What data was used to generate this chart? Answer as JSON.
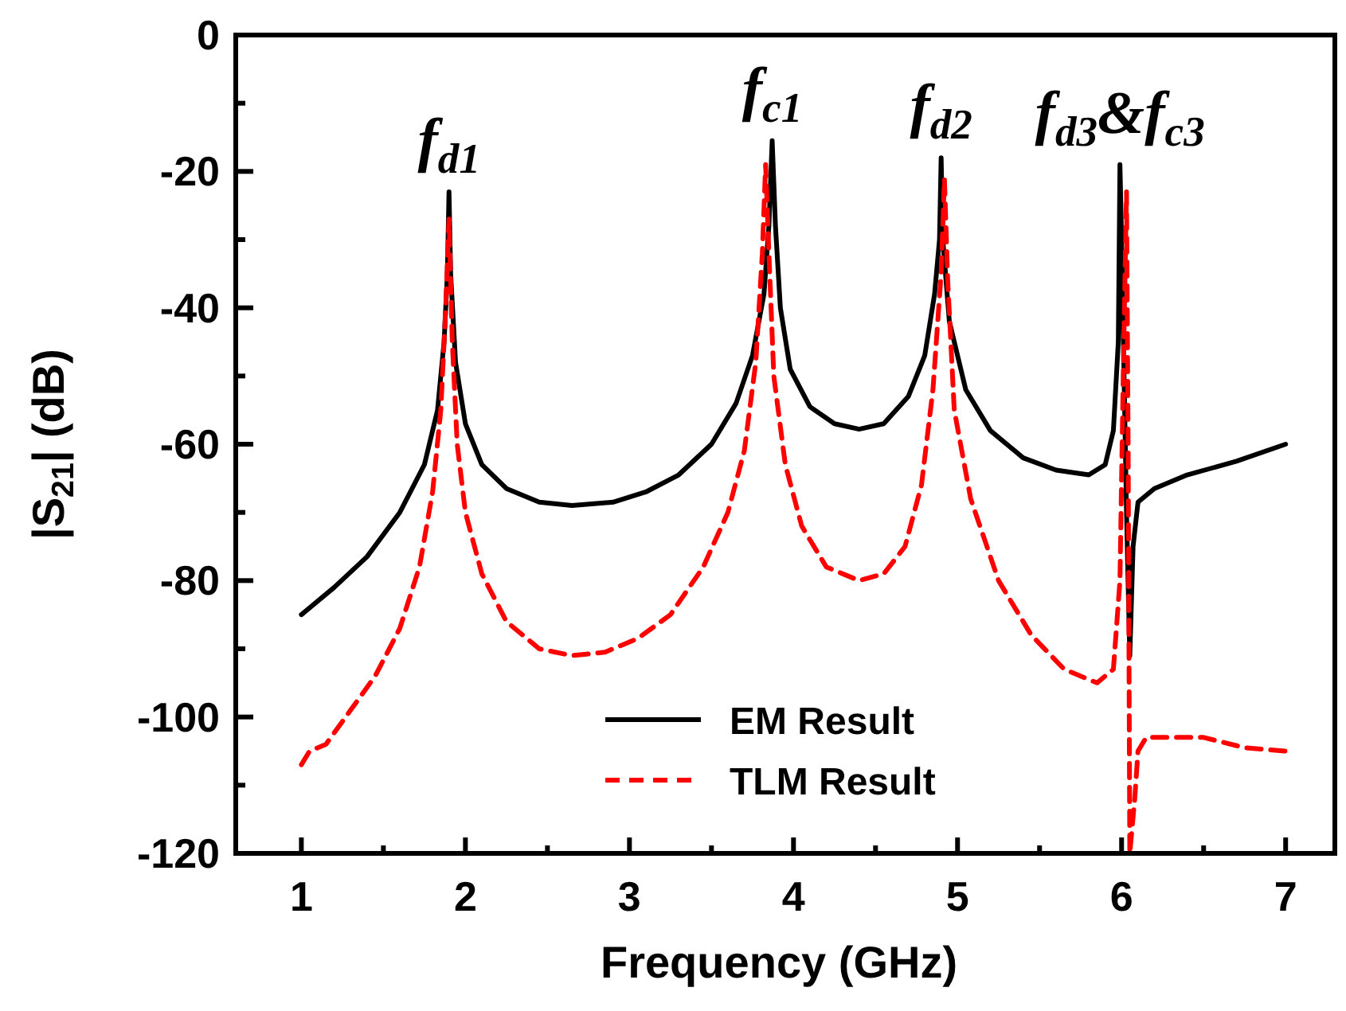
{
  "chart_data": {
    "type": "line",
    "xlabel": "Frequency (GHz)",
    "ylabel": "|S$_{21}$| (dB)",
    "xlim": [
      0.6,
      7.3
    ],
    "ylim": [
      -120,
      0
    ],
    "xticks": [
      1,
      {
        "value": 1.5,
        "label": null
      },
      2,
      {
        "value": 2.5,
        "label": null
      },
      3,
      {
        "value": 3.5,
        "label": null
      },
      4,
      {
        "value": 4.5,
        "label": null
      },
      5,
      {
        "value": 5.5,
        "label": null
      },
      6,
      {
        "value": 6.5,
        "label": null
      },
      7
    ],
    "yticks": [
      -120,
      {
        "value": -110,
        "label": null
      },
      -100,
      {
        "value": -90,
        "label": null
      },
      -80,
      {
        "value": -70,
        "label": null
      },
      -60,
      {
        "value": -50,
        "label": null
      },
      -40,
      {
        "value": -30,
        "label": null
      },
      -20,
      {
        "value": -10,
        "label": null
      },
      0
    ],
    "grid": false,
    "legend": "bottom",
    "marker": "none",
    "annotations": [
      {
        "text": "f$_{d1}$",
        "x": 1.9,
        "y": -23
      },
      {
        "text": "f$_{c1}$",
        "x": 3.87,
        "y": -15.5
      },
      {
        "text": "f$_{d2}$",
        "x": 4.9,
        "y": -18
      },
      {
        "text": "f$_{d3}$&f$_{c3}$",
        "x": 5.99,
        "y": -19
      }
    ],
    "series": [
      {
        "name": "EM Result",
        "color": "#000000",
        "line_style": "solid",
        "x": [
          1,
          1.2,
          1.4,
          1.6,
          1.75,
          1.83,
          1.87,
          1.89,
          1.9,
          1.91,
          1.94,
          2.0,
          2.1,
          2.25,
          2.45,
          2.65,
          2.9,
          3.1,
          3.3,
          3.5,
          3.65,
          3.75,
          3.82,
          3.85,
          3.87,
          3.89,
          3.92,
          3.98,
          4.1,
          4.25,
          4.4,
          4.55,
          4.7,
          4.8,
          4.86,
          4.89,
          4.9,
          4.91,
          4.95,
          5.05,
          5.2,
          5.4,
          5.6,
          5.8,
          5.9,
          5.95,
          5.98,
          5.99,
          6.0,
          6.03,
          6.05,
          6.07,
          6.1,
          6.2,
          6.4,
          6.7,
          7
        ],
        "values": [
          -85,
          -81,
          -76.5,
          -70,
          -63,
          -55,
          -45,
          -35,
          -23,
          -35,
          -48,
          -57,
          -63,
          -66.5,
          -68.5,
          -69,
          -68.5,
          -67,
          -64.5,
          -60,
          -54,
          -47,
          -38,
          -28,
          -15.5,
          -28,
          -40,
          -49,
          -54.5,
          -57,
          -57.8,
          -57,
          -53,
          -47,
          -38,
          -30,
          -18,
          -30,
          -42,
          -52,
          -58,
          -62,
          -63.8,
          -64.5,
          -63,
          -58,
          -45,
          -19,
          -30,
          -70,
          -91,
          -75,
          -68.5,
          -66.5,
          -64.5,
          -62.5,
          -60
        ]
      },
      {
        "name": "TLM Result",
        "color": "#ff0000",
        "line_style": "dashed",
        "x": [
          1,
          1.05,
          1.15,
          1.3,
          1.45,
          1.6,
          1.72,
          1.8,
          1.85,
          1.88,
          1.9,
          1.92,
          1.95,
          2.0,
          2.1,
          2.25,
          2.45,
          2.65,
          2.85,
          3.05,
          3.25,
          3.45,
          3.6,
          3.7,
          3.77,
          3.81,
          3.83,
          3.85,
          3.88,
          3.95,
          4.05,
          4.2,
          4.4,
          4.55,
          4.68,
          4.78,
          4.85,
          4.9,
          4.92,
          4.94,
          4.98,
          5.08,
          5.25,
          5.45,
          5.65,
          5.85,
          5.95,
          5.99,
          6.01,
          6.03,
          6.04,
          6.05,
          6.08,
          6.1,
          6.15,
          6.5,
          6.75,
          7
        ],
        "values": [
          -107,
          -105,
          -104,
          -99,
          -94,
          -87,
          -78,
          -67,
          -55,
          -40,
          -27,
          -45,
          -60,
          -70,
          -79,
          -86,
          -90,
          -91,
          -90.5,
          -88.5,
          -85,
          -78,
          -70,
          -61,
          -48,
          -32,
          -19,
          -32,
          -50,
          -63,
          -72,
          -78,
          -80,
          -79,
          -75,
          -66,
          -52,
          -35,
          -21,
          -36,
          -55,
          -68,
          -80,
          -88,
          -93,
          -95,
          -93,
          -80,
          -50,
          -23,
          -60,
          -120,
          -112,
          -105,
          -103,
          -103,
          -104.5,
          -105
        ]
      }
    ]
  }
}
